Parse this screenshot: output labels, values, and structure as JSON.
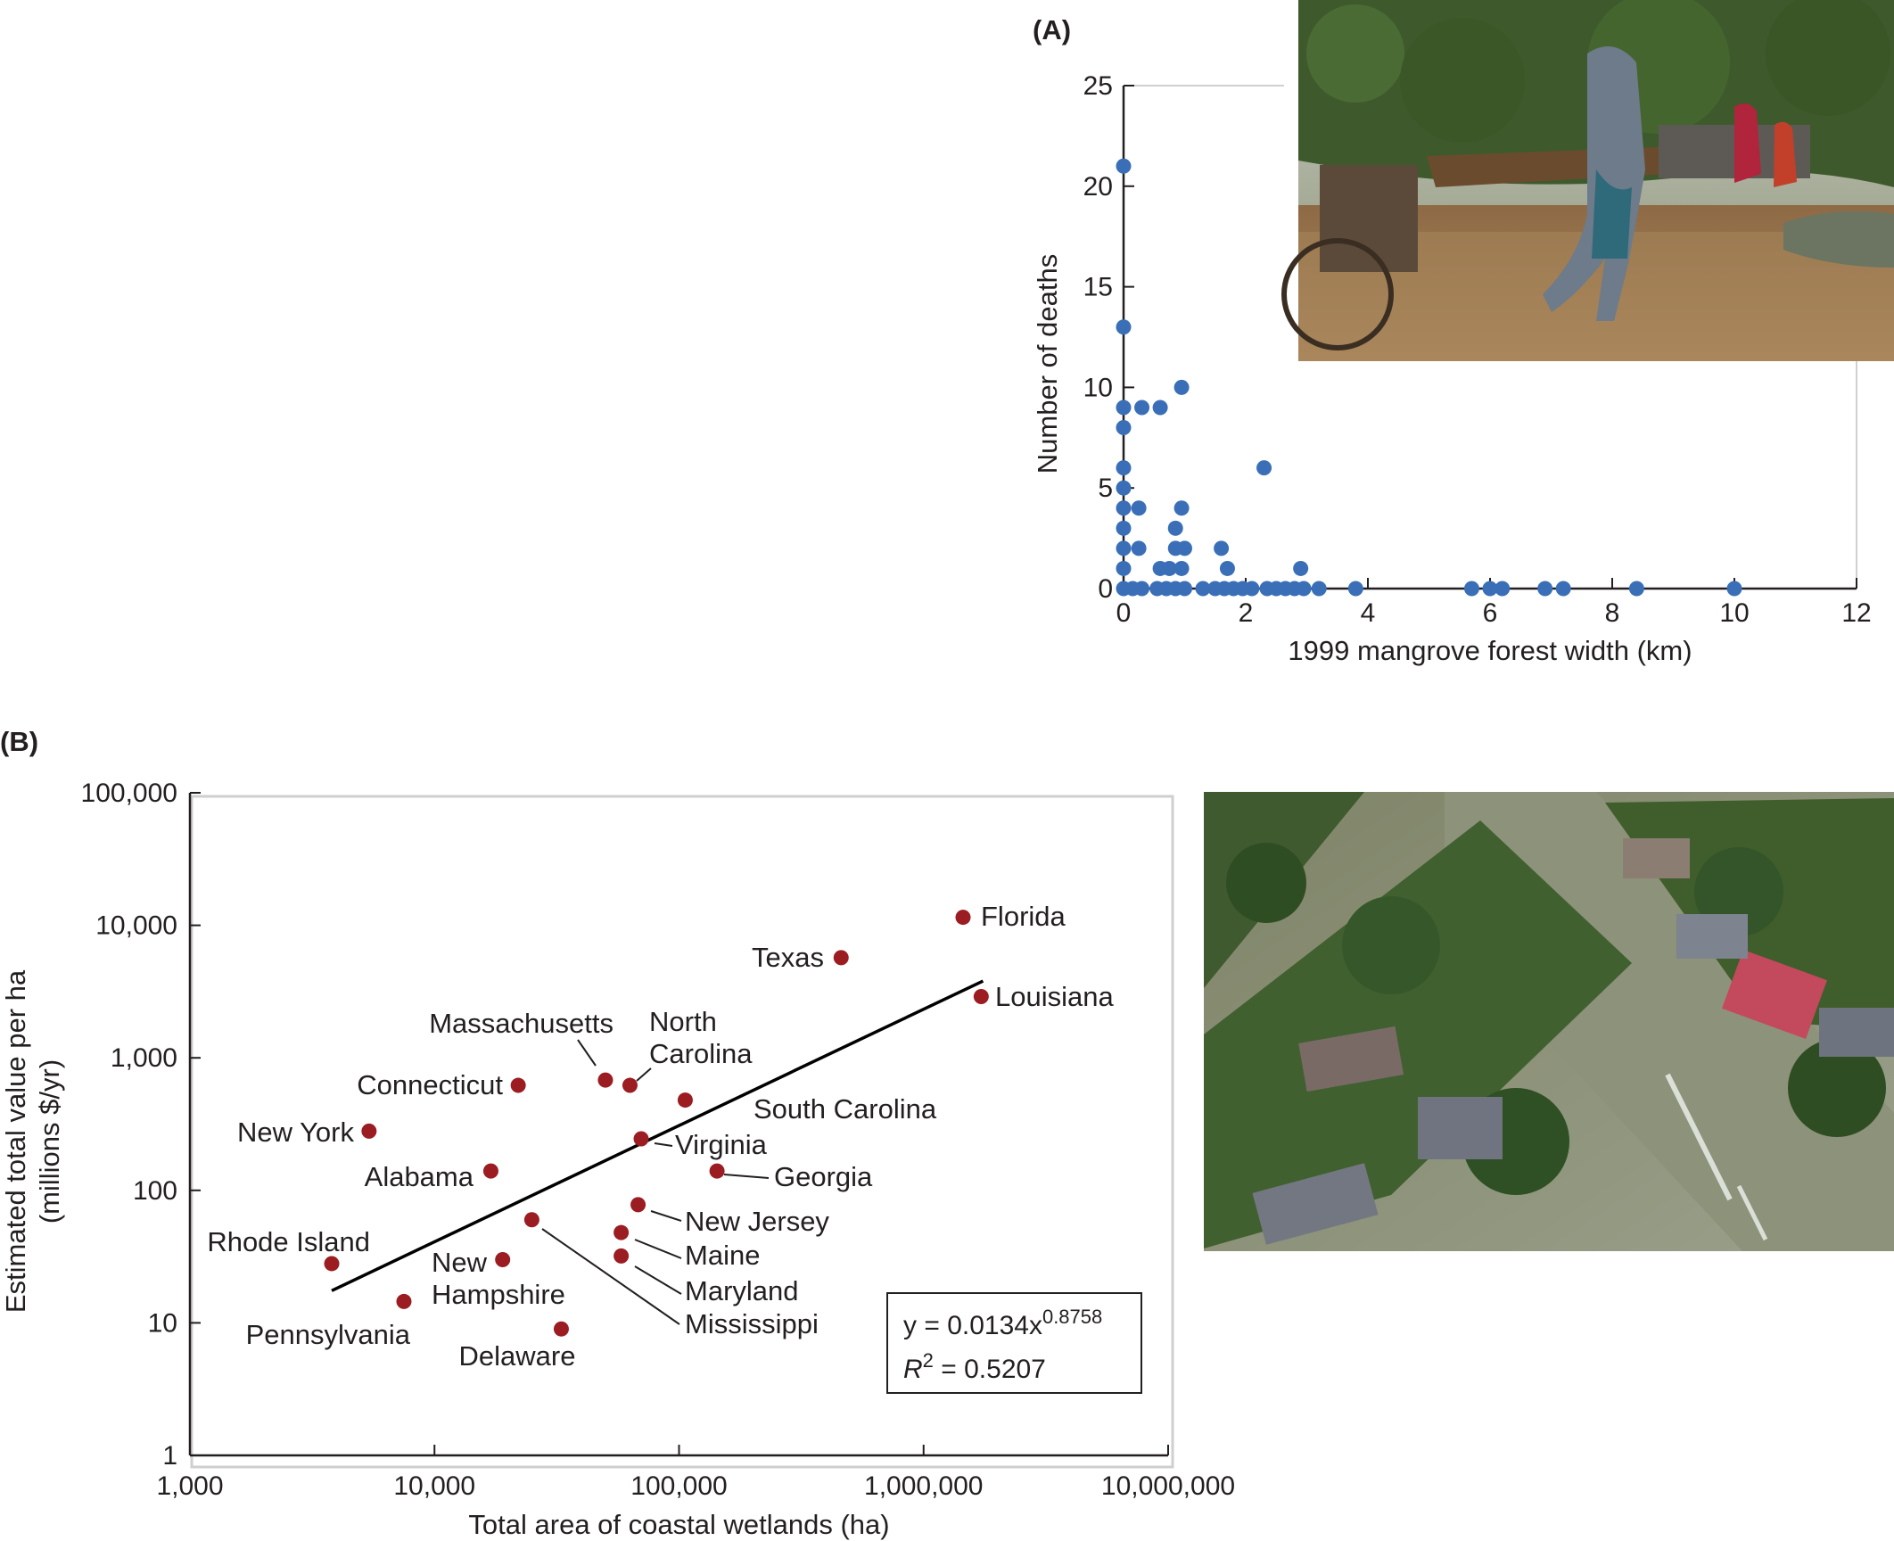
{
  "panel_a": {
    "label": "(A)",
    "photo_icon": "photo-flood-village"
  },
  "panel_b": {
    "label": "(B)",
    "photo_icon": "photo-aerial-flooded-neighborhood",
    "equation_main": "y = 0.0134x",
    "equation_exp": "0.8758",
    "r2_main": "R",
    "r2_sup": "2",
    "r2_value": " = 0.5207"
  },
  "colors": {
    "blue": "#3a6fb8",
    "red": "#9b1c21",
    "axis": "#231f20"
  },
  "chart_data": [
    {
      "type": "scatter",
      "xlabel": "1999 mangrove forest width (km)",
      "ylabel": "Number of deaths",
      "xlim": [
        0,
        12
      ],
      "ylim": [
        0,
        25
      ],
      "x_ticks": [
        "0",
        "2",
        "4",
        "6",
        "8",
        "10",
        "12"
      ],
      "y_ticks": [
        "0",
        "5",
        "10",
        "15",
        "20",
        "25"
      ],
      "grid": false,
      "points": [
        [
          0,
          21
        ],
        [
          0,
          13
        ],
        [
          0,
          9
        ],
        [
          0.3,
          9
        ],
        [
          0.6,
          9
        ],
        [
          0,
          8
        ],
        [
          0.95,
          10
        ],
        [
          0,
          6
        ],
        [
          0,
          5
        ],
        [
          0,
          4
        ],
        [
          0.25,
          4
        ],
        [
          0.95,
          4
        ],
        [
          2.3,
          6
        ],
        [
          0,
          3
        ],
        [
          0.85,
          3
        ],
        [
          0,
          2
        ],
        [
          0.25,
          2
        ],
        [
          0.85,
          2
        ],
        [
          1.0,
          2
        ],
        [
          1.6,
          2
        ],
        [
          0,
          1
        ],
        [
          0.6,
          1
        ],
        [
          0.75,
          1
        ],
        [
          0.95,
          1
        ],
        [
          1.7,
          1
        ],
        [
          2.9,
          1
        ],
        [
          0,
          0
        ],
        [
          0.15,
          0
        ],
        [
          0.3,
          0
        ],
        [
          0.55,
          0
        ],
        [
          0.7,
          0
        ],
        [
          0.85,
          0
        ],
        [
          1.0,
          0
        ],
        [
          1.3,
          0
        ],
        [
          1.5,
          0
        ],
        [
          1.65,
          0
        ],
        [
          1.8,
          0
        ],
        [
          1.95,
          0
        ],
        [
          2.1,
          0
        ],
        [
          2.35,
          0
        ],
        [
          2.5,
          0
        ],
        [
          2.65,
          0
        ],
        [
          2.8,
          0
        ],
        [
          2.95,
          0
        ],
        [
          3.2,
          0
        ],
        [
          3.8,
          0
        ],
        [
          5.7,
          0
        ],
        [
          6.0,
          0
        ],
        [
          6.2,
          0
        ],
        [
          6.9,
          0
        ],
        [
          7.2,
          0
        ],
        [
          8.4,
          0
        ],
        [
          10.0,
          0
        ]
      ]
    },
    {
      "type": "scatter",
      "xlabel": "Total area of coastal wetlands (ha)",
      "ylabel": "Estimated total value per ha",
      "ylabel2": "(millions $/yr)",
      "x_scale": "log",
      "y_scale": "log",
      "xlim": [
        1000,
        10000000
      ],
      "ylim": [
        1,
        100000
      ],
      "x_ticks": [
        "1,000",
        "10,000",
        "100,000",
        "1,000,000",
        "10,000,000"
      ],
      "y_ticks": [
        "1",
        "10",
        "100",
        "1,000",
        "10,000",
        "100,000"
      ],
      "grid": false,
      "fit": {
        "x": [
          3800,
          1750000
        ],
        "y": [
          17.5,
          3800
        ]
      },
      "points": [
        {
          "name": "Florida",
          "x": 1450000,
          "y": 11500
        },
        {
          "name": "Texas",
          "x": 460000,
          "y": 5700
        },
        {
          "name": "Louisiana",
          "x": 1720000,
          "y": 2900
        },
        {
          "name": "Massachusetts",
          "x": 50000,
          "y": 680
        },
        {
          "name": "North Carolina",
          "x": 63000,
          "y": 620
        },
        {
          "name": "Connecticut",
          "x": 22000,
          "y": 620
        },
        {
          "name": "South Carolina",
          "x": 106000,
          "y": 480
        },
        {
          "name": "New York",
          "x": 5400,
          "y": 280
        },
        {
          "name": "Virginia",
          "x": 70000,
          "y": 245
        },
        {
          "name": "Alabama",
          "x": 17000,
          "y": 140
        },
        {
          "name": "Georgia",
          "x": 143000,
          "y": 140
        },
        {
          "name": "New Jersey",
          "x": 68000,
          "y": 78
        },
        {
          "name": "Mississippi",
          "x": 25000,
          "y": 60
        },
        {
          "name": "Maine",
          "x": 58000,
          "y": 48
        },
        {
          "name": "Maryland",
          "x": 58000,
          "y": 32
        },
        {
          "name": "New Hampshire",
          "x": 19000,
          "y": 30
        },
        {
          "name": "Rhode Island",
          "x": 3800,
          "y": 28
        },
        {
          "name": "Pennsylvania",
          "x": 7500,
          "y": 14.5
        },
        {
          "name": "Delaware",
          "x": 33000,
          "y": 9
        }
      ]
    }
  ]
}
